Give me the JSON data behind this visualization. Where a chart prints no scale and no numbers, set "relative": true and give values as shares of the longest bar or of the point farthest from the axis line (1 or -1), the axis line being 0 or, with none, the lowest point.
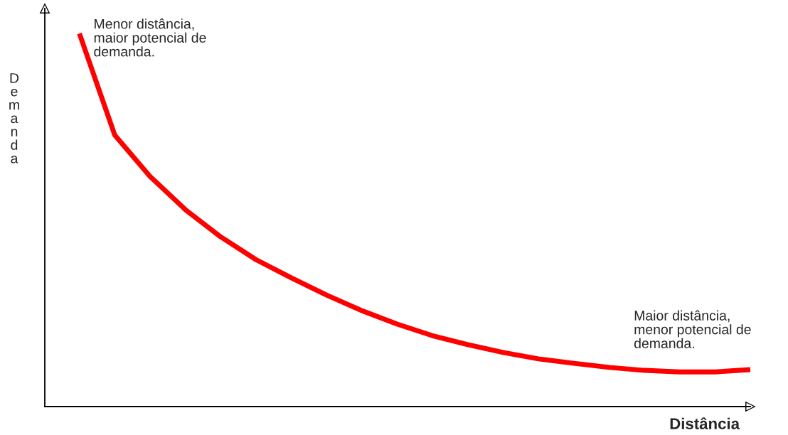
{
  "chart_data": {
    "type": "line",
    "relative": true,
    "xlabel": "Distância",
    "ylabel": "Demanda",
    "color": "#ff0000",
    "categories": [
      null,
      null,
      null,
      null,
      null,
      null,
      null,
      null,
      null,
      null,
      null,
      null,
      null,
      null,
      null,
      null,
      null,
      null,
      null,
      null
    ],
    "values": [
      1.0,
      0.728,
      0.617,
      0.528,
      0.455,
      0.394,
      0.345,
      0.299,
      0.257,
      0.221,
      0.19,
      0.166,
      0.145,
      0.128,
      0.116,
      0.105,
      0.097,
      0.093,
      0.093,
      0.099
    ],
    "annotations": [
      "Menor distância,\nmaior potencial de\ndemanda.",
      "Maior distância,\nmenor potencial de\ndemanda."
    ],
    "grid": false,
    "legend": false
  }
}
